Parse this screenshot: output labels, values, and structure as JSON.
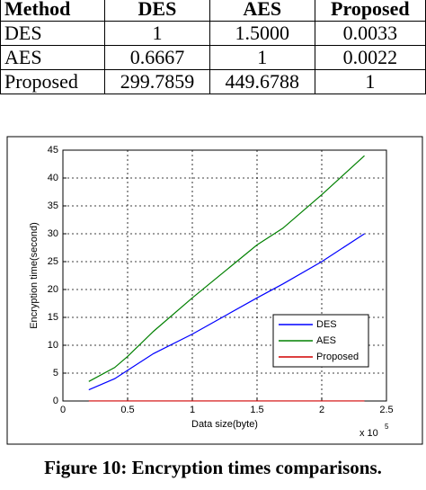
{
  "table": {
    "header": [
      "Method",
      "DES",
      "AES",
      "Proposed"
    ],
    "rows": [
      [
        "DES",
        "1",
        "1.5000",
        "0.0033"
      ],
      [
        "AES",
        "0.6667",
        "1",
        "0.0022"
      ],
      [
        "Proposed",
        "299.7859",
        "449.6788",
        "1"
      ]
    ]
  },
  "chart_data": {
    "type": "line",
    "xlabel": "Data size(byte)",
    "ylabel": "Encryption time(second)",
    "x_multiplier": "x 10",
    "x_exponent": "5",
    "x": [
      0.2,
      0.4,
      0.5,
      0.7,
      1,
      1.5,
      1.7,
      2,
      2.33
    ],
    "series": [
      {
        "name": "DES",
        "color": "#0000ff",
        "values": [
          2,
          4,
          5.5,
          8.5,
          12,
          18.5,
          21,
          25,
          30
        ]
      },
      {
        "name": "AES",
        "color": "#008000",
        "values": [
          3.5,
          6,
          8,
          12.5,
          18.5,
          28,
          31,
          37,
          44
        ]
      },
      {
        "name": "Proposed",
        "color": "#d00000",
        "values": [
          0.01,
          0.01,
          0.01,
          0.01,
          0.01,
          0.01,
          0.01,
          0.01,
          0.01
        ]
      }
    ],
    "xlim": [
      0,
      2.5
    ],
    "xticks": [
      0,
      0.5,
      1,
      1.5,
      2,
      2.5
    ],
    "ylim": [
      0,
      45
    ],
    "yticks": [
      0,
      5,
      10,
      15,
      20,
      25,
      30,
      35,
      40,
      45
    ],
    "grid": true,
    "legend": "lower right"
  },
  "caption": "Figure 10: Encryption times comparisons."
}
